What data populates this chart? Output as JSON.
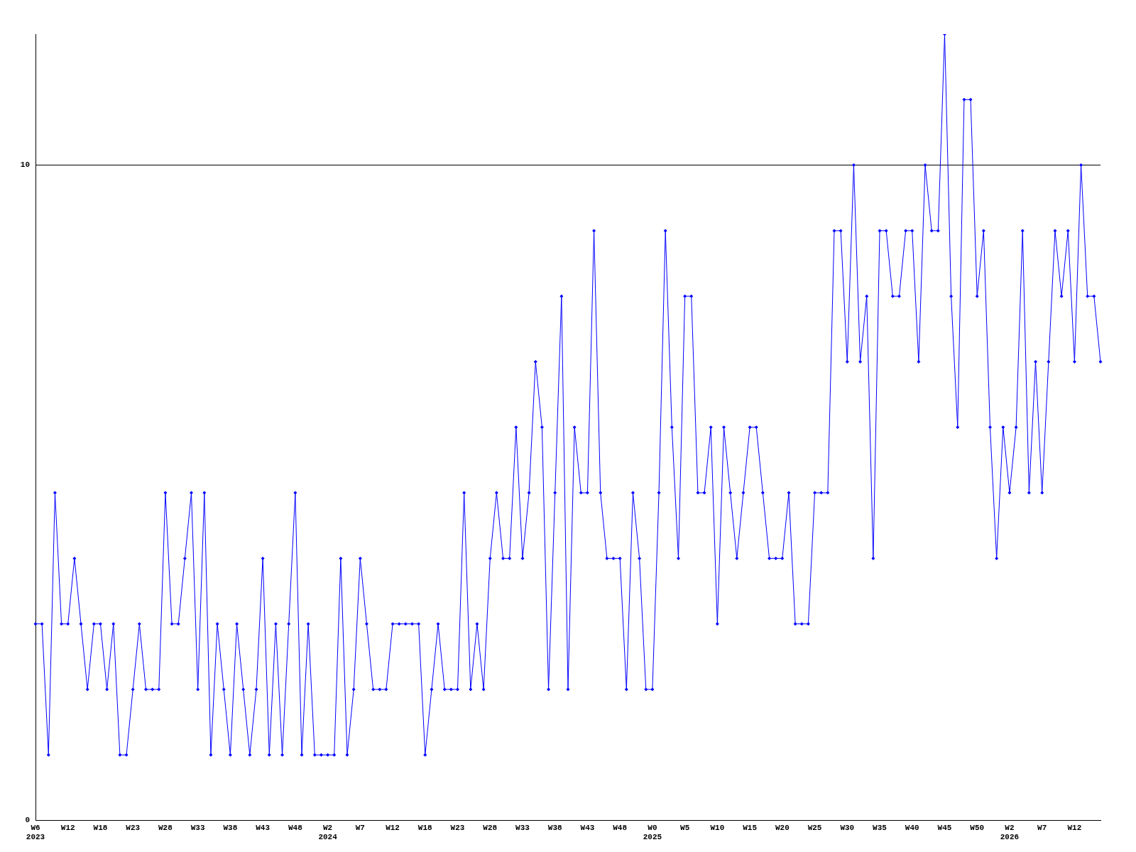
{
  "chart_data": {
    "type": "line",
    "categories": [
      "W6\n2023",
      null,
      null,
      null,
      null,
      "W12",
      null,
      null,
      null,
      null,
      "W18",
      null,
      null,
      null,
      null,
      "W23",
      null,
      null,
      null,
      null,
      "W28",
      null,
      null,
      null,
      null,
      "W33",
      null,
      null,
      null,
      null,
      "W38",
      null,
      null,
      null,
      null,
      "W43",
      null,
      null,
      null,
      null,
      "W48",
      null,
      null,
      null,
      null,
      "W2\n2024",
      null,
      null,
      null,
      null,
      "W7",
      null,
      null,
      null,
      null,
      "W12",
      null,
      null,
      null,
      null,
      "W18",
      null,
      null,
      null,
      null,
      "W23",
      null,
      null,
      null,
      null,
      "W28",
      null,
      null,
      null,
      null,
      "W33",
      null,
      null,
      null,
      null,
      "W38",
      null,
      null,
      null,
      null,
      "W43",
      null,
      null,
      null,
      null,
      "W48",
      null,
      null,
      null,
      null,
      "W0\n2025",
      null,
      null,
      null,
      null,
      "W5",
      null,
      null,
      null,
      null,
      "W10",
      null,
      null,
      null,
      null,
      "W15",
      null,
      null,
      null,
      null,
      "W20",
      null,
      null,
      null,
      null,
      "W25",
      null,
      null,
      null,
      null,
      "W30",
      null,
      null,
      null,
      null,
      "W35",
      null,
      null,
      null,
      null,
      "W40",
      null,
      null,
      null,
      null,
      "W45",
      null,
      null,
      null,
      null,
      "W50",
      null,
      null,
      null,
      null,
      "W2\n2026",
      null,
      null,
      null,
      null,
      "W7",
      null,
      null,
      null,
      null,
      "W12",
      null,
      null,
      null,
      null
    ],
    "series": [
      {
        "color": "#0000ff",
        "values": [
          3,
          3,
          1,
          5,
          3,
          3,
          4,
          3,
          2,
          3,
          3,
          2,
          3,
          1,
          1,
          2,
          3,
          2,
          2,
          2,
          5,
          3,
          3,
          4,
          5,
          2,
          5,
          1,
          3,
          2,
          1,
          3,
          2,
          1,
          2,
          4,
          1,
          3,
          1,
          3,
          5,
          1,
          3,
          1,
          1,
          1,
          1,
          4,
          1,
          2,
          4,
          3,
          2,
          2,
          2,
          3,
          3,
          3,
          3,
          3,
          1,
          2,
          3,
          2,
          2,
          2,
          5,
          2,
          3,
          2,
          4,
          5,
          4,
          4,
          6,
          4,
          5,
          7,
          6,
          2,
          5,
          8,
          2,
          6,
          5,
          5,
          9,
          5,
          4,
          4,
          4,
          2,
          5,
          4,
          2,
          2,
          5,
          9,
          6,
          4,
          8,
          8,
          5,
          5,
          6,
          3,
          6,
          5,
          4,
          5,
          6,
          6,
          5,
          4,
          4,
          4,
          5,
          3,
          3,
          3,
          5,
          5,
          5,
          9,
          9,
          7,
          10,
          7,
          8,
          4,
          9,
          9,
          8,
          8,
          9,
          9,
          7,
          10,
          9,
          9,
          12,
          8,
          6,
          11,
          11,
          8,
          9,
          6,
          4,
          6,
          5,
          6,
          9,
          5,
          7,
          5,
          7,
          9,
          8,
          9,
          7,
          10,
          8,
          8,
          7
        ]
      }
    ],
    "ylim": [
      0,
      12
    ],
    "yticks": [
      0,
      10
    ],
    "grid": "y",
    "legend": false,
    "marker": "diamond",
    "line_style": "solid"
  }
}
